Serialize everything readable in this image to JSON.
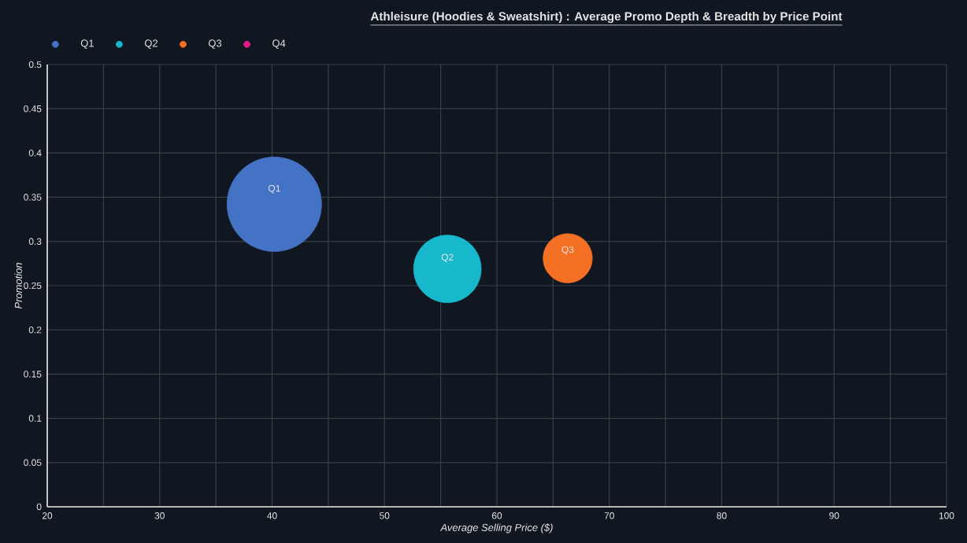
{
  "chart_data": {
    "type": "bubble",
    "title": "Athleisure (Hoodies & Sweatshirt) : Average Promo Depth & Breadth by Price Point",
    "xlabel": "Average Selling Price ($)",
    "ylabel": "Promotion",
    "xlim": [
      20,
      100
    ],
    "ylim": [
      0,
      0.5
    ],
    "xticks": [
      20,
      {
        "value": 25,
        "label": null
      },
      30,
      {
        "value": 35,
        "label": null
      },
      40,
      {
        "value": 45,
        "label": null
      },
      50,
      {
        "value": 55,
        "label": null
      },
      60,
      {
        "value": 65,
        "label": null
      },
      70,
      {
        "value": 75,
        "label": null
      },
      80,
      {
        "value": 85,
        "label": null
      },
      90,
      {
        "value": 95,
        "label": null
      },
      100
    ],
    "yticks": [
      0,
      0.05,
      0.1,
      0.15,
      0.2,
      0.25,
      0.3,
      0.35,
      0.4,
      0.45,
      0.5
    ],
    "grid": true,
    "legend": "top left",
    "marker": "circle",
    "series": [
      {
        "name": "Q1",
        "color": "#4472c4",
        "x": [
          40.2
        ],
        "values": [
          0.342
        ],
        "sizes": [
          1
        ]
      },
      {
        "name": "Q2",
        "color": "#17b8cc",
        "x": [
          55.6
        ],
        "values": [
          0.269
        ],
        "sizes": [
          0.51
        ]
      },
      {
        "name": "Q3",
        "color": "#f47024",
        "x": [
          66.3
        ],
        "values": [
          0.281
        ],
        "sizes": [
          0.27
        ]
      },
      {
        "name": "Q4",
        "color": "#e6198a"
      }
    ]
  }
}
